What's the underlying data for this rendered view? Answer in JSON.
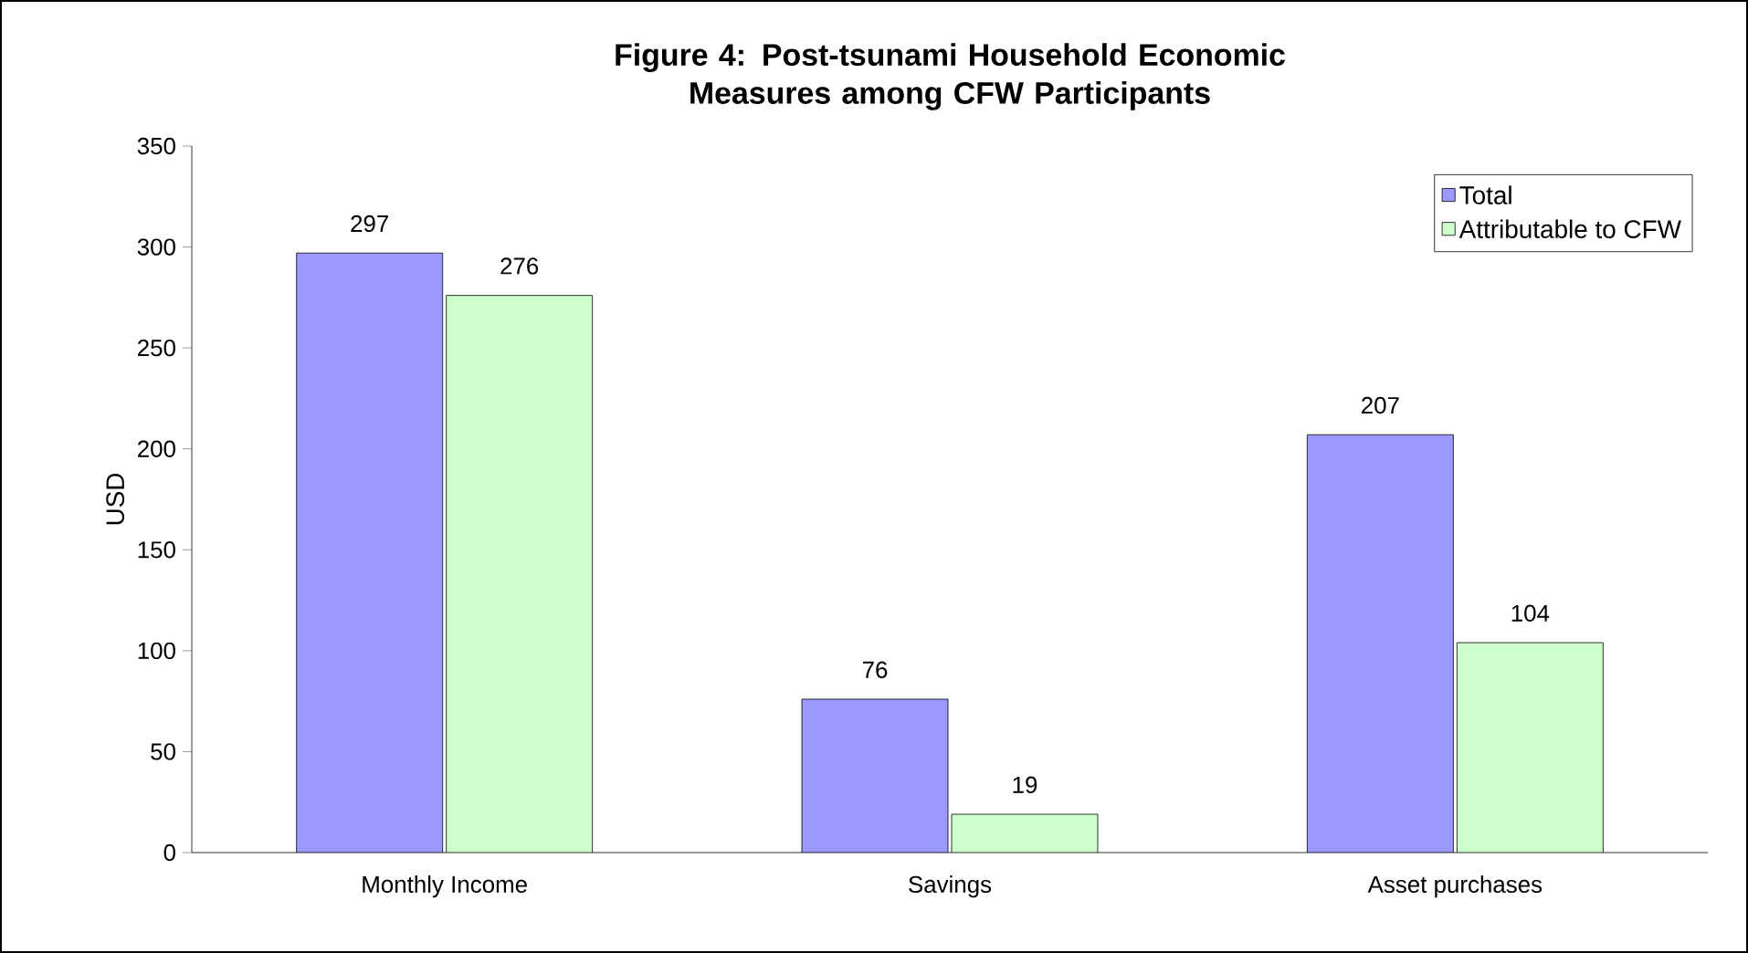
{
  "chart_data": {
    "type": "bar",
    "title": "Figure 4: Post-tsunami Household Economic Measures among CFW Participants",
    "ylabel": "USD",
    "categories": [
      "Monthly Income",
      "Savings",
      "Asset purchases"
    ],
    "series": [
      {
        "name": "Total",
        "color": "#9999ff",
        "values": [
          297,
          76,
          207
        ]
      },
      {
        "name": "Attributable to CFW",
        "color": "#ccffcc",
        "values": [
          276,
          19,
          104
        ]
      }
    ],
    "ylim": [
      0,
      350
    ],
    "yticks": [
      0,
      50,
      100,
      150,
      200,
      250,
      300,
      350
    ],
    "data_labels": true,
    "legend": "top right",
    "grid": false
  }
}
